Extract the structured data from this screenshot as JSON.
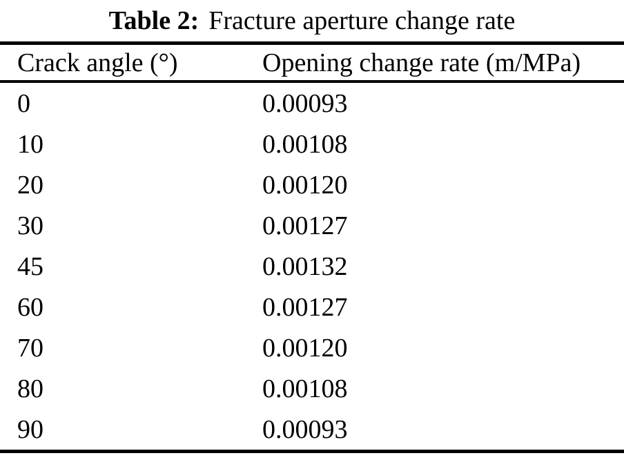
{
  "page": {
    "background": "#ffffff",
    "text_color": "#000000",
    "rule_color": "#000000"
  },
  "caption": {
    "label": "Table 2:",
    "text": "Fracture aperture change rate"
  },
  "table": {
    "columns": [
      "Crack angle (°)",
      "Opening change rate (m/MPa)"
    ],
    "rows": [
      {
        "angle": "0",
        "rate": "0.00093"
      },
      {
        "angle": "10",
        "rate": "0.00108"
      },
      {
        "angle": "20",
        "rate": "0.00120"
      },
      {
        "angle": "30",
        "rate": "0.00127"
      },
      {
        "angle": "45",
        "rate": "0.00132"
      },
      {
        "angle": "60",
        "rate": "0.00127"
      },
      {
        "angle": "70",
        "rate": "0.00120"
      },
      {
        "angle": "80",
        "rate": "0.00108"
      },
      {
        "angle": "90",
        "rate": "0.00093"
      }
    ]
  },
  "chart_data": {
    "type": "table",
    "title": "Table 2: Fracture aperture change rate",
    "categories": [
      0,
      10,
      20,
      30,
      45,
      60,
      70,
      80,
      90
    ],
    "series": [
      {
        "name": "Opening change rate (m/MPa)",
        "values": [
          0.00093,
          0.00108,
          0.0012,
          0.00127,
          0.00132,
          0.00127,
          0.0012,
          0.00108,
          0.00093
        ]
      }
    ],
    "xlabel": "Crack angle (°)",
    "ylabel": "Opening change rate (m/MPa)"
  }
}
